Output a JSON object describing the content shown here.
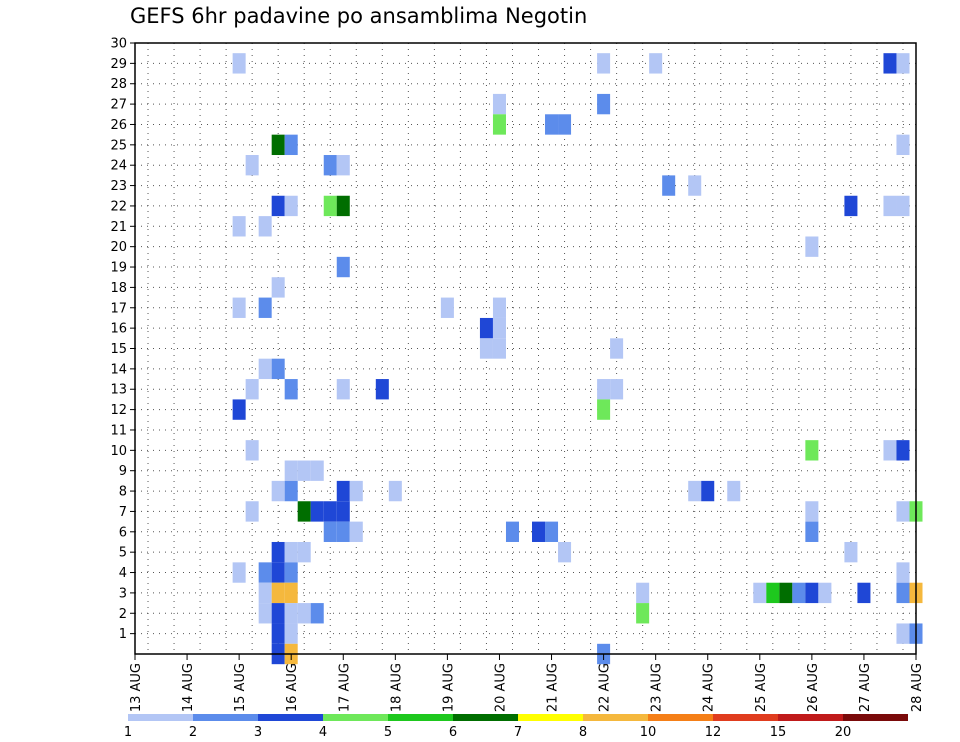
{
  "chart_data": {
    "type": "heatmap",
    "title": "GEFS 6hr padavine po ansamblima Negotin",
    "x_ticks": [
      "13 AUG",
      "14 AUG",
      "15 AUG",
      "16 AUG",
      "17 AUG",
      "18 AUG",
      "19 AUG",
      "20 AUG",
      "21 AUG",
      "22 AUG",
      "23 AUG",
      "24 AUG",
      "25 AUG",
      "26 AUG",
      "27 AUG",
      "28 AUG"
    ],
    "x_range": [
      "13 AUG 00Z",
      "28 AUG 00Z"
    ],
    "x_step": "6hr",
    "y_range": [
      0,
      30
    ],
    "y_ticks": [
      "1",
      "2",
      "3",
      "4",
      "5",
      "6",
      "7",
      "8",
      "9",
      "10",
      "11",
      "12",
      "13",
      "14",
      "15",
      "16",
      "17",
      "18",
      "19",
      "20",
      "21",
      "22",
      "23",
      "24",
      "25",
      "26",
      "27",
      "28",
      "29",
      "30"
    ],
    "grid": true,
    "legend": {
      "placement": "bottom",
      "colors": [
        "#b3c6f5",
        "#5c8ceb",
        "#1f47d6",
        "#6ee85a",
        "#1ec81e",
        "#006e00",
        "#ffff00",
        "#f5b83d",
        "#f57f17",
        "#e03c1e",
        "#c01a1a",
        "#7a0a0a"
      ],
      "labels": [
        "1",
        "2",
        "3",
        "4",
        "5",
        "6",
        "7",
        "8",
        "10",
        "12",
        "15",
        "20"
      ]
    },
    "cells_note": "each cell: [time step index from 13 AUG 00Z (6h steps), member, category index 0-11]",
    "cells": [
      [
        8,
        29,
        0
      ],
      [
        36,
        29,
        0
      ],
      [
        40,
        29,
        0
      ],
      [
        58,
        29,
        2
      ],
      [
        59,
        29,
        0
      ],
      [
        28,
        27,
        0
      ],
      [
        36,
        27,
        1
      ],
      [
        28,
        26,
        3
      ],
      [
        32,
        26,
        1
      ],
      [
        33,
        26,
        1
      ],
      [
        11,
        25,
        5
      ],
      [
        12,
        25,
        1
      ],
      [
        59,
        25,
        0
      ],
      [
        9,
        24,
        0
      ],
      [
        15,
        24,
        1
      ],
      [
        16,
        24,
        0
      ],
      [
        41,
        23,
        1
      ],
      [
        43,
        23,
        0
      ],
      [
        11,
        22,
        2
      ],
      [
        12,
        22,
        0
      ],
      [
        15,
        22,
        3
      ],
      [
        16,
        22,
        5
      ],
      [
        55,
        22,
        2
      ],
      [
        58,
        22,
        0
      ],
      [
        59,
        22,
        0
      ],
      [
        8,
        21,
        0
      ],
      [
        10,
        21,
        0
      ],
      [
        52,
        20,
        0
      ],
      [
        16,
        19,
        1
      ],
      [
        11,
        18,
        0
      ],
      [
        8,
        17,
        0
      ],
      [
        10,
        17,
        1
      ],
      [
        24,
        17,
        0
      ],
      [
        28,
        17,
        0
      ],
      [
        27,
        16,
        2
      ],
      [
        28,
        16,
        0
      ],
      [
        37,
        15,
        0
      ],
      [
        27,
        15,
        0
      ],
      [
        28,
        15,
        0
      ],
      [
        10,
        14,
        0
      ],
      [
        11,
        14,
        1
      ],
      [
        9,
        13,
        0
      ],
      [
        12,
        13,
        1
      ],
      [
        16,
        13,
        0
      ],
      [
        19,
        13,
        2
      ],
      [
        36,
        13,
        0
      ],
      [
        37,
        13,
        0
      ],
      [
        8,
        12,
        2
      ],
      [
        36,
        12,
        3
      ],
      [
        9,
        10,
        0
      ],
      [
        52,
        10,
        3
      ],
      [
        58,
        10,
        0
      ],
      [
        59,
        10,
        2
      ],
      [
        12,
        9,
        0
      ],
      [
        13,
        9,
        0
      ],
      [
        14,
        9,
        0
      ],
      [
        11,
        8,
        0
      ],
      [
        12,
        8,
        1
      ],
      [
        16,
        8,
        2
      ],
      [
        17,
        8,
        0
      ],
      [
        20,
        8,
        0
      ],
      [
        43,
        8,
        0
      ],
      [
        44,
        8,
        2
      ],
      [
        46,
        8,
        0
      ],
      [
        9,
        7,
        0
      ],
      [
        13,
        7,
        5
      ],
      [
        14,
        7,
        2
      ],
      [
        15,
        7,
        2
      ],
      [
        16,
        7,
        2
      ],
      [
        52,
        7,
        0
      ],
      [
        59,
        7,
        0
      ],
      [
        60,
        7,
        3
      ],
      [
        15,
        6,
        1
      ],
      [
        16,
        6,
        1
      ],
      [
        17,
        6,
        0
      ],
      [
        29,
        6,
        1
      ],
      [
        31,
        6,
        2
      ],
      [
        32,
        6,
        1
      ],
      [
        52,
        6,
        1
      ],
      [
        11,
        5,
        2
      ],
      [
        12,
        5,
        0
      ],
      [
        13,
        5,
        0
      ],
      [
        33,
        5,
        0
      ],
      [
        55,
        5,
        0
      ],
      [
        8,
        4,
        0
      ],
      [
        10,
        4,
        1
      ],
      [
        11,
        4,
        2
      ],
      [
        12,
        4,
        1
      ],
      [
        59,
        4,
        0
      ],
      [
        10,
        3,
        0
      ],
      [
        11,
        3,
        7
      ],
      [
        12,
        3,
        7
      ],
      [
        39,
        3,
        0
      ],
      [
        48,
        3,
        0
      ],
      [
        49,
        3,
        4
      ],
      [
        50,
        3,
        5
      ],
      [
        51,
        3,
        1
      ],
      [
        52,
        3,
        2
      ],
      [
        53,
        3,
        0
      ],
      [
        56,
        3,
        2
      ],
      [
        59,
        3,
        1
      ],
      [
        60,
        3,
        7
      ],
      [
        10,
        2,
        0
      ],
      [
        11,
        2,
        2
      ],
      [
        12,
        2,
        0
      ],
      [
        13,
        2,
        0
      ],
      [
        14,
        2,
        1
      ],
      [
        39,
        2,
        3
      ],
      [
        11,
        1,
        2
      ],
      [
        12,
        1,
        0
      ],
      [
        59,
        1,
        0
      ],
      [
        60,
        1,
        1
      ],
      [
        11,
        0,
        2
      ],
      [
        12,
        0,
        7
      ],
      [
        36,
        0,
        1
      ]
    ]
  }
}
